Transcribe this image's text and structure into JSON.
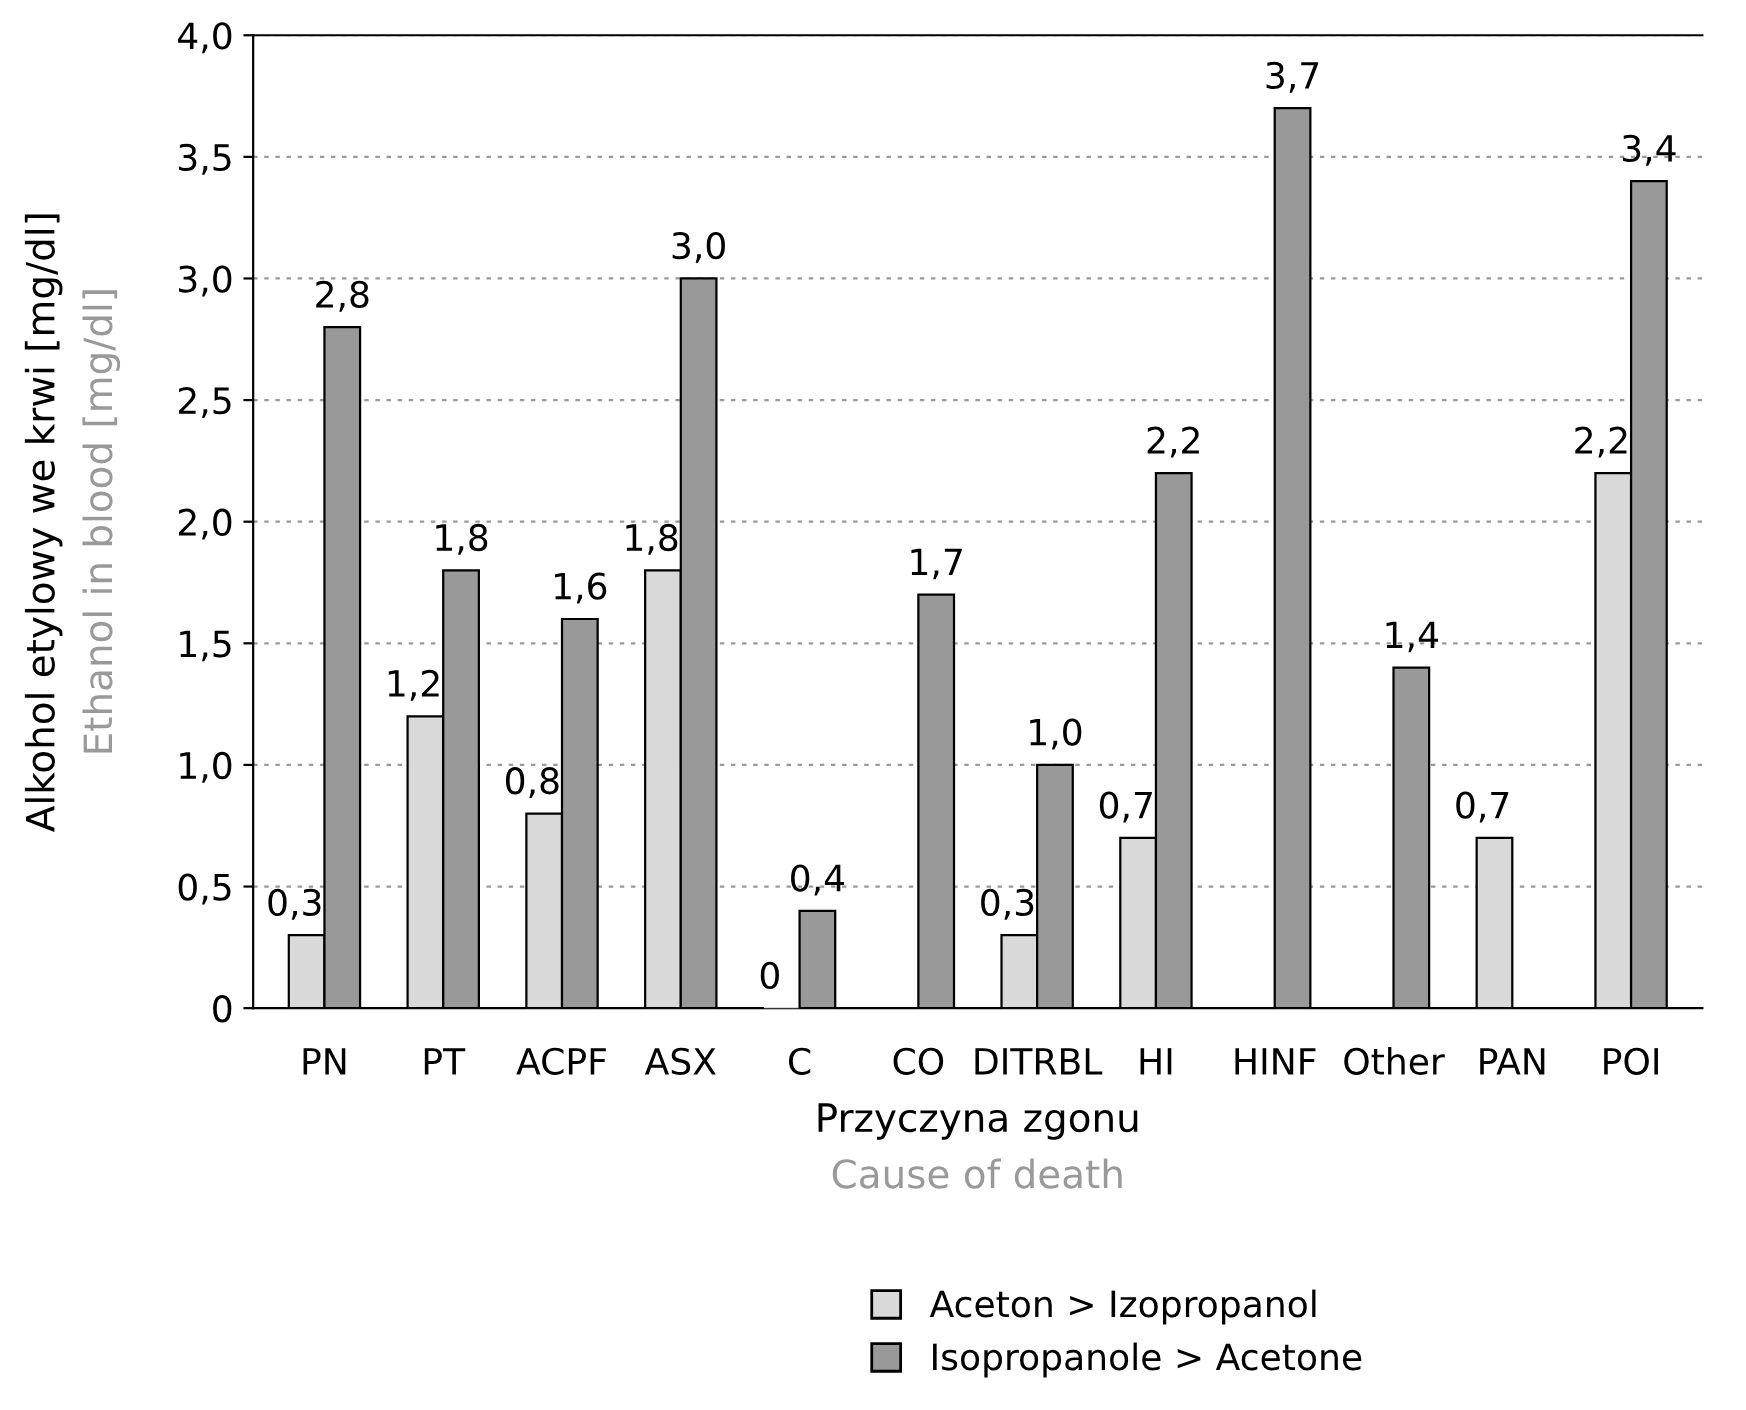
{
  "chart_data": {
    "type": "bar",
    "xlabel": "Przyczyna zgonu",
    "ylabel": "Alkohol etylowy we krwi [mg/dl]",
    "annotations": [
      "Ethanol in blood [mg/dl]",
      "Cause of death"
    ],
    "categories": [
      "PN",
      "PT",
      "ACPF",
      "ASX",
      "C",
      "CO",
      "DITRBL",
      "HI",
      "HINF",
      "Other",
      "PAN",
      "POI"
    ],
    "series": [
      {
        "name": "Aceton > Izopropanol",
        "color": "#d9d9d9",
        "values": [
          0.3,
          1.2,
          0.8,
          1.8,
          0,
          null,
          0.3,
          0.7,
          null,
          null,
          0.7,
          2.2
        ],
        "value_labels": [
          "0,3",
          "1,2",
          "0,8",
          "1,8",
          "0",
          null,
          "0,3",
          "0,7",
          null,
          null,
          "0,7",
          "2,2"
        ]
      },
      {
        "name": "Isopropanole > Acetone",
        "color": "#999999",
        "values": [
          2.8,
          1.8,
          1.6,
          3.0,
          0.4,
          1.7,
          1.0,
          2.2,
          3.7,
          1.4,
          null,
          3.4
        ],
        "value_labels": [
          "2,8",
          "1,8",
          "1,6",
          "3,0",
          "0,4",
          "1,7",
          "1,0",
          "2,2",
          "3,7",
          "1,4",
          null,
          "3,4"
        ]
      }
    ],
    "ylim": [
      0,
      4.0
    ],
    "yticks": [
      0,
      {
        "value": 0.5,
        "label": "0,5"
      },
      {
        "value": 1.0,
        "label": "1,0"
      },
      {
        "value": 1.5,
        "label": "1,5"
      },
      {
        "value": 2.0,
        "label": "2,0"
      },
      {
        "value": 2.5,
        "label": "2,5"
      },
      {
        "value": 3.0,
        "label": "3,0"
      },
      {
        "value": 3.5,
        "label": "3,5"
      },
      {
        "value": 4.0,
        "label": "4,0"
      }
    ],
    "grid": "y",
    "legend": "bottom"
  }
}
